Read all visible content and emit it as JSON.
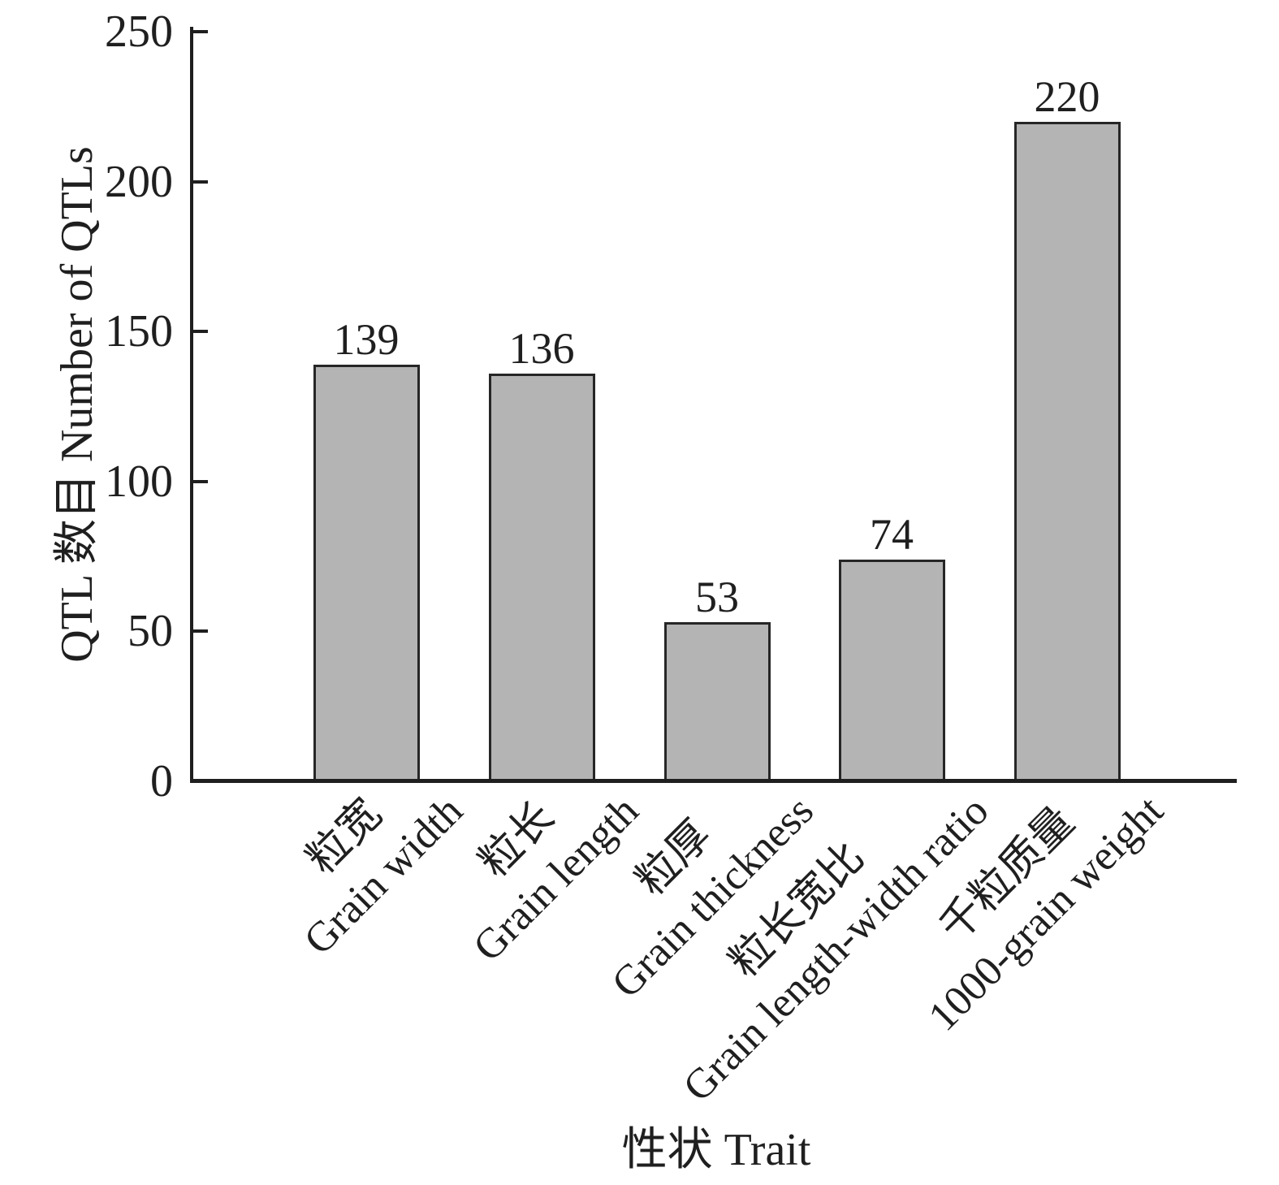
{
  "chart_data": {
    "type": "bar",
    "title": "",
    "categories": [
      "粒宽 Grain width",
      "粒长 Grain length",
      "粒厚 Grain thickness",
      "粒长宽比 Grain length-width ratio",
      "千粒质量 1000-grain weight"
    ],
    "categories_lines": [
      {
        "zh": "粒宽",
        "en": "Grain width"
      },
      {
        "zh": "粒长",
        "en": "Grain length"
      },
      {
        "zh": "粒厚",
        "en": "Grain thickness"
      },
      {
        "zh": "粒长宽比",
        "en": "Grain length-width ratio"
      },
      {
        "zh": "千粒质量",
        "en": "1000-grain weight"
      }
    ],
    "values": [
      139,
      136,
      53,
      74,
      220
    ],
    "bar_value_labels": [
      "139",
      "136",
      "53",
      "74",
      "220"
    ],
    "xlabel": "性状 Trait",
    "ylabel": "QTL 数目 Number of QTLs",
    "ylim": [
      0,
      250
    ],
    "yticks": [
      0,
      50,
      100,
      150,
      200,
      250
    ],
    "grid": false,
    "legend": false,
    "tick_direction": "in",
    "bar_fill_color": "#b4b4b4",
    "bar_border_color": "#262626",
    "axis_color": "#1f1f1f",
    "text_color": "#1f1f1f",
    "background_color": "#ffffff"
  }
}
